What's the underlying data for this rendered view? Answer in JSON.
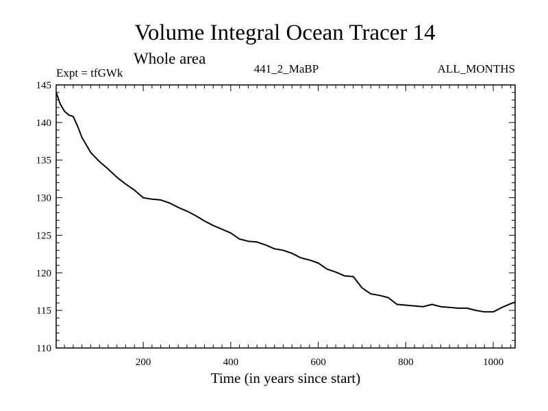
{
  "chart_data": {
    "type": "line",
    "title": "Volume Integral Ocean Tracer 14",
    "subtitle": "Whole area",
    "header_left": "Expt = tfGWk",
    "header_center": "441_2_MaBP",
    "header_right": "ALL_MONTHS",
    "xlabel": "Time (in years since start)",
    "ylabel": "",
    "xlim": [
      1,
      1050
    ],
    "ylim": [
      110,
      145
    ],
    "x_ticks": [
      200,
      400,
      600,
      800,
      1000
    ],
    "y_ticks": [
      110,
      115,
      120,
      125,
      130,
      135,
      140,
      145
    ],
    "x_minor_step": 20,
    "y_minor_step": 1,
    "grid": false,
    "series": [
      {
        "name": "Ocean Tracer 14",
        "color": "#000000",
        "x": [
          1,
          10,
          20,
          30,
          40,
          50,
          60,
          80,
          100,
          120,
          140,
          160,
          180,
          200,
          220,
          240,
          260,
          280,
          300,
          320,
          340,
          360,
          380,
          400,
          420,
          440,
          460,
          480,
          500,
          520,
          540,
          560,
          580,
          600,
          620,
          640,
          660,
          680,
          700,
          720,
          740,
          760,
          780,
          800,
          820,
          840,
          860,
          880,
          900,
          920,
          940,
          960,
          980,
          1000,
          1020,
          1040,
          1050
        ],
        "y": [
          144.0,
          142.5,
          141.5,
          141.0,
          140.8,
          139.5,
          138.0,
          136.0,
          134.8,
          133.8,
          132.7,
          131.8,
          131.0,
          130.0,
          129.8,
          129.7,
          129.3,
          128.7,
          128.2,
          127.6,
          126.9,
          126.3,
          125.8,
          125.3,
          124.5,
          124.2,
          124.1,
          123.7,
          123.2,
          123.0,
          122.6,
          122.0,
          121.7,
          121.3,
          120.5,
          120.1,
          119.6,
          119.5,
          118.0,
          117.2,
          117.0,
          116.7,
          115.8,
          115.7,
          115.6,
          115.5,
          115.8,
          115.5,
          115.4,
          115.3,
          115.3,
          115.0,
          114.8,
          114.8,
          115.4,
          115.9,
          116.1
        ]
      }
    ]
  }
}
